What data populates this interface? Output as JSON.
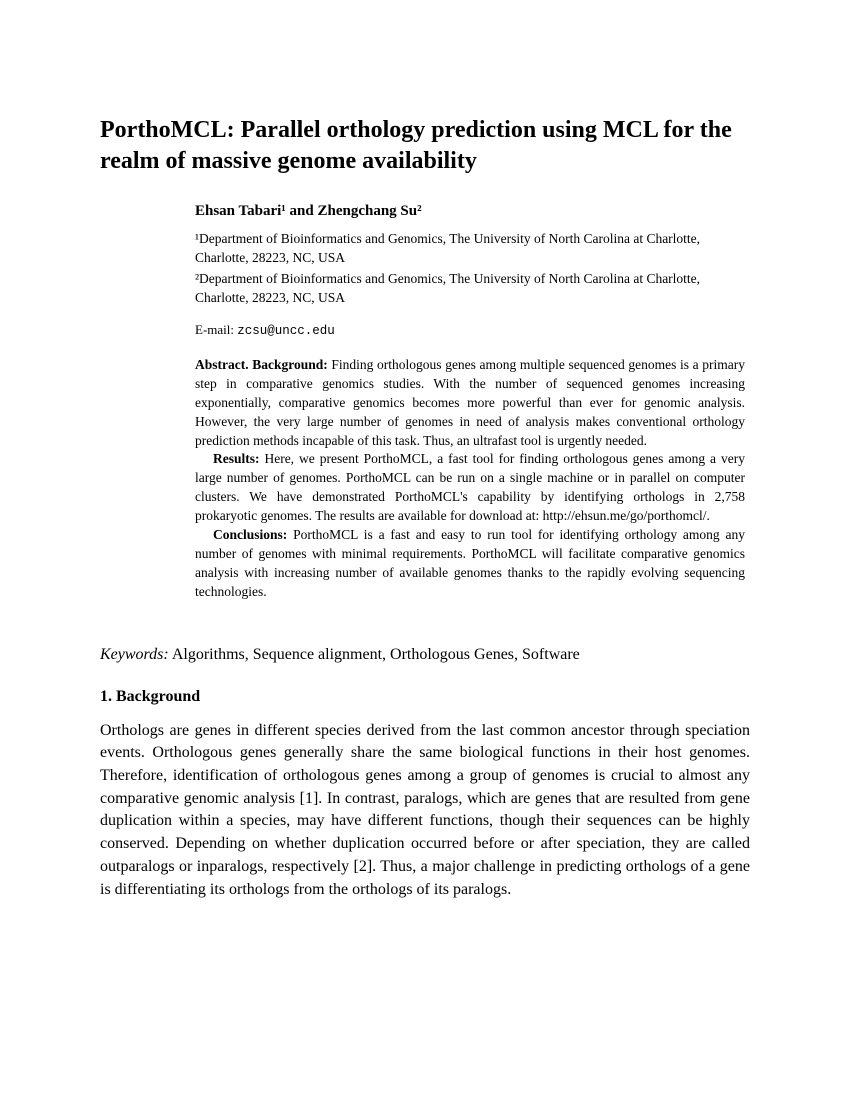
{
  "title": "PorthoMCL: Parallel orthology prediction using MCL for the realm of massive genome availability",
  "authors": "Ehsan Tabari¹ and Zhengchang Su²",
  "affiliations": {
    "aff1": "¹Department of Bioinformatics and Genomics, The University of North Carolina at Charlotte, Charlotte, 28223, NC, USA",
    "aff2": "²Department of Bioinformatics and Genomics, The University of North Carolina at Charlotte, Charlotte, 28223, NC, USA"
  },
  "email_label": "E-mail: ",
  "email": "zcsu@uncc.edu",
  "abstract": {
    "label": "Abstract.",
    "bg_label": "Background:",
    "bg_text": " Finding orthologous genes among multiple sequenced genomes is a primary step in comparative genomics studies. With the number of sequenced genomes increasing exponentially, comparative genomics becomes more powerful than ever for genomic analysis. However, the very large number of genomes in need of analysis makes conventional orthology prediction methods incapable of this task. Thus, an ultrafast tool is urgently needed.",
    "res_label": "Results:",
    "res_text": " Here, we present PorthoMCL, a fast tool for finding orthologous genes among a very large number of genomes. PorthoMCL can be run on a single machine or in parallel on computer clusters. We have demonstrated PorthoMCL's capability by identifying orthologs in 2,758 prokaryotic genomes. The results are available for download at: http://ehsun.me/go/porthomcl/.",
    "con_label": "Conclusions:",
    "con_text": " PorthoMCL is a fast and easy to run tool for identifying orthology among any number of genomes with minimal requirements. PorthoMCL will facilitate comparative genomics analysis with increasing number of available genomes thanks to the rapidly evolving sequencing technologies."
  },
  "keywords_label": "Keywords:",
  "keywords_text": " Algorithms, Sequence alignment, Orthologous Genes, Software",
  "section_heading": "1. Background",
  "body_para": "Orthologs are genes in different species derived from the last common ancestor through speciation events. Orthologous genes generally share the same biological functions in their host genomes. Therefore, identification of orthologous genes among a group of genomes is crucial to almost any comparative genomic analysis [1]. In contrast, paralogs, which are genes that are resulted from gene duplication within a species, may have different functions, though their sequences can be highly conserved. Depending on whether duplication occurred before or after speciation, they are called outparalogs or inparalogs, respectively [2]. Thus, a major challenge in predicting orthologs of a gene is differentiating its orthologs from the orthologs of its paralogs."
}
